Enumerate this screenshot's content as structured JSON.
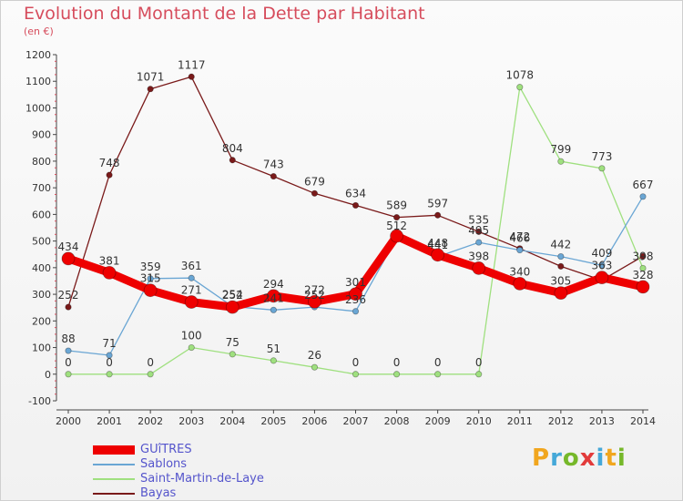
{
  "chart_data": {
    "type": "line",
    "title": "Evolution du Montant de la Dette par Habitant",
    "subtitle": "(en €)",
    "x": [
      "2000",
      "2001",
      "2002",
      "2003",
      "2004",
      "2005",
      "2006",
      "2007",
      "2008",
      "2009",
      "2010",
      "2011",
      "2012",
      "2013",
      "2014"
    ],
    "ylim": [
      -100,
      1200
    ],
    "yticks": [
      -100,
      0,
      100,
      200,
      300,
      400,
      500,
      600,
      700,
      800,
      900,
      1000,
      1100,
      1200
    ],
    "grid": false,
    "legend_position": "bottom-left",
    "series": [
      {
        "name": "Bayas",
        "color": "#7a1a1a",
        "values": [
          252,
          748,
          1071,
          1117,
          804,
          743,
          679,
          634,
          589,
          597,
          535,
          472,
          405,
          353,
          443
        ],
        "labels": [
          "252",
          "748",
          "1071",
          "1117",
          "804",
          "743",
          "679",
          "634",
          "589",
          "597",
          "535",
          "472",
          "",
          "",
          ""
        ]
      },
      {
        "name": "Saint-Martin-de-Laye",
        "color": "#9fe07f",
        "values": [
          0,
          0,
          0,
          100,
          75,
          51,
          26,
          0,
          0,
          0,
          0,
          1078,
          799,
          773,
          398
        ],
        "labels": [
          "0",
          "0",
          "0",
          "100",
          "75",
          "51",
          "26",
          "0",
          "0",
          "0",
          "0",
          "1078",
          "799",
          "773",
          "398"
        ]
      },
      {
        "name": "Sablons",
        "color": "#6aa6d4",
        "values": [
          88,
          71,
          359,
          361,
          254,
          241,
          252,
          236,
          512,
          441,
          495,
          466,
          442,
          409,
          667
        ],
        "labels": [
          "88",
          "71",
          "359",
          "361",
          "254",
          "241",
          "252",
          "236",
          "512",
          "441",
          "495",
          "466",
          "442",
          "409",
          "667"
        ]
      },
      {
        "name": "GUîTRES",
        "color": "#ee0000",
        "values": [
          434,
          381,
          315,
          271,
          252,
          294,
          272,
          301,
          519,
          448,
          398,
          340,
          305,
          363,
          328
        ],
        "labels": [
          "434",
          "381",
          "315",
          "271",
          "252",
          "294",
          "272",
          "301",
          "",
          "448",
          "398",
          "340",
          "305",
          "363",
          "328"
        ]
      }
    ],
    "legend": [
      "GUîTRES",
      "Sablons",
      "Saint-Martin-de-Laye",
      "Bayas"
    ]
  },
  "logo_text": "Proxiti"
}
